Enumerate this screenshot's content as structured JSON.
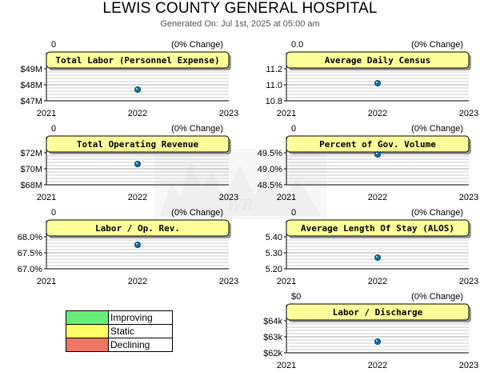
{
  "header": {
    "title": "LEWIS COUNTY GENERAL HOSPITAL",
    "subtitle": "Generated On: Jul 1st, 2025 at 05:00 am"
  },
  "colors": {
    "panel_title_bg": "#ffff99",
    "panel_shadow": "#999999",
    "grid": "#cccccc",
    "marker": "#0e6fa0",
    "watermark": "#dddddd"
  },
  "legend": {
    "items": [
      {
        "label": "Improving",
        "color": "#66ee77"
      },
      {
        "label": "Static",
        "color": "#ffff66"
      },
      {
        "label": "Declining",
        "color": "#ee7766"
      }
    ]
  },
  "chart_data": [
    {
      "type": "scatter",
      "title": "Total Labor (Personnel Expense)",
      "left_header": "0",
      "right_header": "(0% Change)",
      "x_ticks": [
        "2021",
        "2022",
        "2023"
      ],
      "ylim": [
        47,
        49
      ],
      "y_ticks": [
        "$47M",
        "$48M",
        "$49M"
      ],
      "points": [
        {
          "x": "2022",
          "y": 47.7
        }
      ]
    },
    {
      "type": "scatter",
      "title": "Average Daily Census",
      "left_header": "0.0",
      "right_header": "(0% Change)",
      "x_ticks": [
        "2021",
        "2022",
        "2023"
      ],
      "ylim": [
        10.8,
        11.2
      ],
      "y_ticks": [
        "10.8",
        "11.0",
        "11.2"
      ],
      "points": [
        {
          "x": "2022",
          "y": 11.02
        }
      ]
    },
    {
      "type": "scatter",
      "title": "Total Operating Revenue",
      "left_header": "0",
      "right_header": "(0% Change)",
      "x_ticks": [
        "2021",
        "2022",
        "2023"
      ],
      "ylim": [
        68,
        72
      ],
      "y_ticks": [
        "$68M",
        "$70M",
        "$72M"
      ],
      "points": [
        {
          "x": "2022",
          "y": 70.6
        }
      ]
    },
    {
      "type": "scatter",
      "title": "Percent of Gov. Volume",
      "left_header": "0",
      "right_header": "(0% Change)",
      "x_ticks": [
        "2021",
        "2022",
        "2023"
      ],
      "ylim": [
        48.5,
        49.5
      ],
      "y_ticks": [
        "48.5%",
        "49.0%",
        "49.5%"
      ],
      "points": [
        {
          "x": "2022",
          "y": 49.45
        }
      ]
    },
    {
      "type": "scatter",
      "title": "Labor / Op. Rev.",
      "left_header": "0",
      "right_header": "(0% Change)",
      "x_ticks": [
        "2021",
        "2022",
        "2023"
      ],
      "ylim": [
        67.0,
        68.0
      ],
      "y_ticks": [
        "67.0%",
        "67.5%",
        "68.0%"
      ],
      "points": [
        {
          "x": "2022",
          "y": 67.75
        }
      ]
    },
    {
      "type": "scatter",
      "title": "Average Length Of Stay (ALOS)",
      "left_header": "0",
      "right_header": "(0% Change)",
      "x_ticks": [
        "2021",
        "2022",
        "2023"
      ],
      "ylim": [
        5.2,
        5.4
      ],
      "y_ticks": [
        "5.20",
        "5.30",
        "5.40"
      ],
      "points": [
        {
          "x": "2022",
          "y": 5.27
        }
      ]
    },
    {
      "type": "scatter",
      "title": "Labor / Discharge",
      "left_header": "$0",
      "right_header": "(0% Change)",
      "x_ticks": [
        "2021",
        "2022",
        "2023"
      ],
      "ylim": [
        62,
        64
      ],
      "y_ticks": [
        "$62k",
        "$63k",
        "$64k"
      ],
      "points": [
        {
          "x": "2022",
          "y": 62.7
        }
      ]
    }
  ]
}
